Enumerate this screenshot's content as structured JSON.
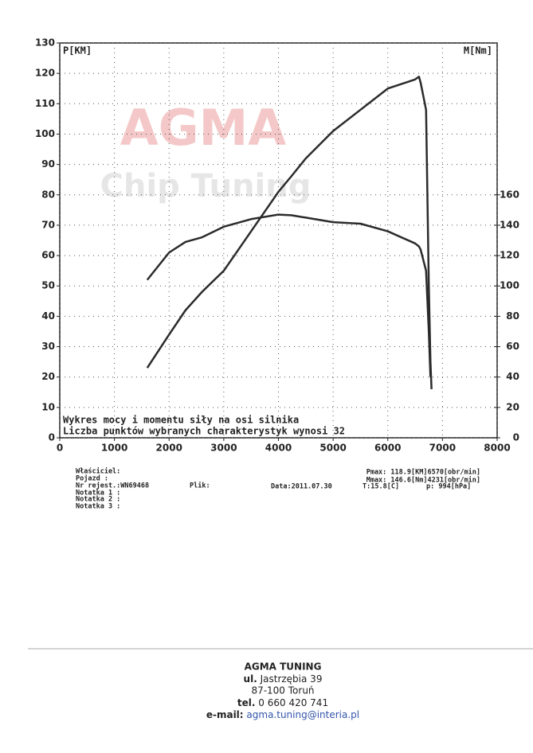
{
  "chart_data": {
    "type": "line",
    "watermark": [
      "AGMA",
      "Chip Tuning"
    ],
    "ylabel": "P[KM]",
    "y2label": "M[Nm]",
    "annotations": [
      "Wykres mocy i momentu siły na osi silnika",
      "Liczba punktów wybranych charakterystyk wynosi 32"
    ],
    "x": [
      1600,
      2000,
      2300,
      2600,
      3000,
      3500,
      4000,
      4231,
      4500,
      5000,
      5500,
      6000,
      6500,
      6570,
      6600,
      6700,
      6750,
      6780,
      6800
    ],
    "xlim": [
      0,
      8000
    ],
    "xticks": [
      0,
      1000,
      2000,
      3000,
      4000,
      5000,
      6000,
      7000,
      8000
    ],
    "ylim": [
      0,
      130
    ],
    "yticks": [
      0,
      10,
      20,
      30,
      40,
      50,
      60,
      70,
      80,
      90,
      100,
      110,
      120,
      130
    ],
    "y2lim": [
      0,
      260
    ],
    "y2ticks": [
      0,
      20,
      40,
      60,
      80,
      100,
      120,
      140,
      160
    ],
    "grid": true,
    "series": [
      {
        "color": "#2b2b2b",
        "values": [
          23,
          34,
          42,
          48,
          55,
          68,
          81,
          86,
          92,
          101,
          108,
          115,
          118,
          118.9,
          117,
          108,
          50,
          25,
          16
        ]
      },
      {
        "color": "#2b2b2b",
        "axis": "y2",
        "values": [
          104,
          122,
          129,
          132,
          139,
          144,
          147,
          146.6,
          145,
          142,
          141,
          136,
          128,
          126,
          124,
          110,
          70,
          40,
          null
        ]
      }
    ]
  },
  "info": {
    "left": [
      "Właściciel:",
      "Pojazd :",
      "Nr rejest.:WN69468",
      "Notatka 1 :",
      "Notatka 2 :",
      "Notatka 3 :"
    ],
    "file": "Plik:",
    "right": [
      "Pmax: 118.9[KM]6570[obr/min]",
      "Mmax: 146.6[Nm]4231[obr/min]"
    ],
    "date": "Data:2011.07.30",
    "temp": "T:15.8[C]",
    "pressure": "p: 994[hPa]"
  },
  "footer": {
    "name": "AGMA TUNING",
    "street_label": "ul.",
    "street": "Jastrzębia 39",
    "city": "87-100 Toruń",
    "tel_label": "tel.",
    "tel": "0 660 420 741",
    "email_label": "e-mail:",
    "email": "agma.tuning@interia.pl"
  }
}
